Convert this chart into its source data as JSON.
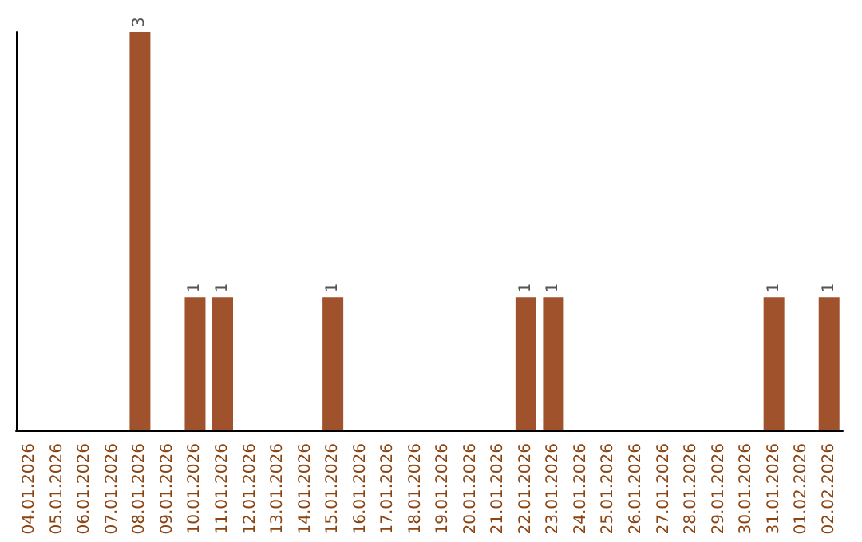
{
  "chart_data": {
    "type": "bar",
    "categories": [
      "04.01.2026",
      "05.01.2026",
      "06.01.2026",
      "07.01.2026",
      "08.01.2026",
      "09.01.2026",
      "10.01.2026",
      "11.01.2026",
      "12.01.2026",
      "13.01.2026",
      "14.01.2026",
      "15.01.2026",
      "16.01.2026",
      "17.01.2026",
      "18.01.2026",
      "19.01.2026",
      "20.01.2026",
      "21.01.2026",
      "22.01.2026",
      "23.01.2026",
      "24.01.2026",
      "25.01.2026",
      "26.01.2026",
      "27.01.2026",
      "28.01.2026",
      "29.01.2026",
      "30.01.2026",
      "31.01.2026",
      "01.02.2026",
      "02.02.2026"
    ],
    "values": [
      0,
      0,
      0,
      0,
      3,
      0,
      1,
      1,
      0,
      0,
      0,
      1,
      0,
      0,
      0,
      0,
      0,
      0,
      1,
      1,
      0,
      0,
      0,
      0,
      0,
      0,
      0,
      1,
      0,
      1
    ],
    "value_labels": [
      null,
      null,
      null,
      null,
      "3",
      null,
      "1",
      "1",
      null,
      null,
      null,
      "1",
      null,
      null,
      null,
      null,
      null,
      null,
      "1",
      "1",
      null,
      null,
      null,
      null,
      null,
      null,
      null,
      "1",
      null,
      "1"
    ],
    "color": "#a0522d",
    "tick_labels": "x"
  }
}
